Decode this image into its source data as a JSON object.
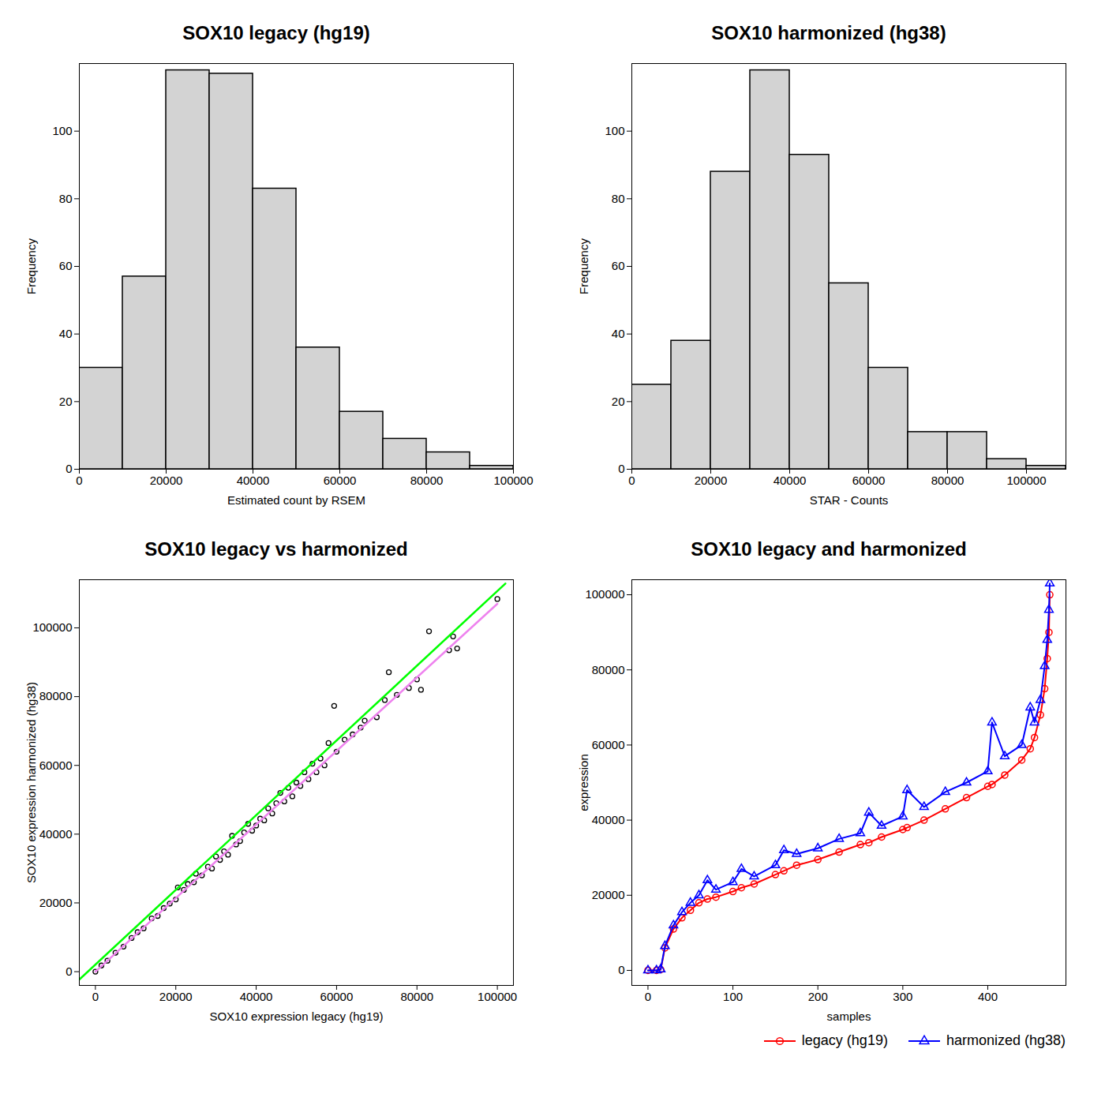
{
  "chart_data": [
    {
      "type": "histogram",
      "title": "SOX10 legacy (hg19)",
      "xlabel": "Estimated count by RSEM",
      "ylabel": "Frequency",
      "bins": [
        0,
        10000,
        20000,
        30000,
        40000,
        50000,
        60000,
        70000,
        80000,
        90000,
        100000
      ],
      "counts": [
        30,
        57,
        118,
        117,
        83,
        36,
        17,
        9,
        5,
        1
      ],
      "color": "#d3d3d3",
      "xlim": [
        0,
        100000
      ],
      "xticks": [
        0,
        20000,
        40000,
        60000,
        80000,
        100000
      ],
      "ylim": [
        0,
        120
      ],
      "yticks": [
        0,
        20,
        40,
        60,
        80,
        100
      ]
    },
    {
      "type": "histogram",
      "title": "SOX10 harmonized (hg38)",
      "xlabel": "STAR - Counts",
      "ylabel": "Frequency",
      "bins": [
        0,
        10000,
        20000,
        30000,
        40000,
        50000,
        60000,
        70000,
        80000,
        90000,
        100000,
        110000
      ],
      "counts": [
        25,
        38,
        88,
        118,
        93,
        55,
        30,
        11,
        11,
        3,
        1
      ],
      "color": "#d3d3d3",
      "xlim": [
        0,
        110000
      ],
      "xticks": [
        0,
        20000,
        40000,
        60000,
        80000,
        100000
      ],
      "ylim": [
        0,
        120
      ],
      "yticks": [
        0,
        20,
        40,
        60,
        80,
        100
      ]
    },
    {
      "type": "scatter",
      "title": "SOX10 legacy vs harmonized",
      "xlabel": "SOX10 expression legacy (hg19)",
      "ylabel": "SOX10 expression harmonized (hg38)",
      "xlim": [
        -4000,
        104000
      ],
      "xticks": [
        0,
        20000,
        40000,
        60000,
        80000,
        100000
      ],
      "ylim": [
        -4000,
        114000
      ],
      "yticks": [
        0,
        20000,
        40000,
        60000,
        80000,
        100000
      ],
      "series": [
        {
          "type": "scatter",
          "color": "#000000",
          "marker": "circle",
          "x": [
            0,
            1500,
            3000,
            5000,
            7000,
            9000,
            10500,
            12000,
            14000,
            15500,
            17000,
            18500,
            20000,
            20500,
            22000,
            23000,
            24500,
            25000,
            26500,
            28000,
            29000,
            30000,
            31000,
            32000,
            33000,
            34000,
            35000,
            36000,
            37000,
            38000,
            39000,
            40000,
            41000,
            42000,
            43000,
            44000,
            45000,
            46000,
            47000,
            48000,
            49000,
            50000,
            51000,
            52000,
            53000,
            54000,
            55000,
            56000,
            57000,
            58000,
            59400,
            60000,
            62000,
            64000,
            66000,
            67000,
            70000,
            72000,
            73000,
            75000,
            78000,
            80000,
            81000,
            83000,
            88000,
            89000,
            90000,
            100000
          ],
          "values": [
            0,
            1800,
            3200,
            5500,
            7300,
            9800,
            11500,
            12600,
            15500,
            16200,
            18500,
            19800,
            21000,
            24500,
            23800,
            25500,
            26000,
            28500,
            28000,
            30500,
            30000,
            33500,
            32500,
            35000,
            34000,
            39500,
            37000,
            38000,
            40500,
            43000,
            41000,
            42500,
            44500,
            44000,
            47500,
            46000,
            49000,
            52000,
            49500,
            53500,
            51000,
            55000,
            54000,
            58000,
            56000,
            60500,
            58000,
            62000,
            60000,
            66500,
            77300,
            64000,
            67500,
            69000,
            71000,
            73000,
            74000,
            79000,
            87100,
            80500,
            82500,
            85000,
            82000,
            99000,
            93500,
            97500,
            94000,
            108400
          ]
        },
        {
          "type": "line",
          "color": "#00ff00",
          "line_style": "solid",
          "x": [
            -4000,
            102000
          ],
          "values": [
            -2300,
            112900
          ]
        },
        {
          "type": "line",
          "color": "#ee82ee",
          "line_style": "solid",
          "x": [
            0,
            100000
          ],
          "values": [
            0,
            107000
          ]
        }
      ]
    },
    {
      "type": "line",
      "title": "SOX10 legacy and harmonized",
      "xlabel": "samples",
      "ylabel": "expression",
      "legend": "bottomright",
      "xlim": [
        -19,
        492
      ],
      "xticks": [
        0,
        100,
        200,
        300,
        400
      ],
      "ylim": [
        -4000,
        104000
      ],
      "yticks": [
        0,
        20000,
        40000,
        60000,
        80000,
        100000
      ],
      "x": [
        0,
        10,
        15,
        20,
        30,
        40,
        50,
        60,
        70,
        80,
        100,
        110,
        125,
        150,
        160,
        175,
        200,
        225,
        250,
        260,
        275,
        300,
        305,
        325,
        350,
        375,
        400,
        405,
        420,
        440,
        450,
        455,
        462,
        467,
        470,
        472,
        473
      ],
      "series": [
        {
          "name": "legacy (hg19)",
          "color": "#ff0000",
          "marker": "circle",
          "values": [
            0,
            0,
            200,
            6000,
            11000,
            14000,
            16000,
            18000,
            19000,
            19500,
            21000,
            22000,
            23000,
            25500,
            26500,
            28000,
            29500,
            31500,
            33500,
            34000,
            35500,
            37500,
            38000,
            40000,
            43000,
            46000,
            49000,
            49500,
            52000,
            56000,
            59000,
            62000,
            68000,
            75000,
            83000,
            90000,
            100000
          ]
        },
        {
          "name": "harmonized (hg38)",
          "color": "#0000ff",
          "marker": "triangle",
          "values": [
            0,
            0,
            300,
            6500,
            12000,
            15500,
            18000,
            20000,
            24000,
            21500,
            23500,
            27000,
            25000,
            28000,
            32000,
            31000,
            32500,
            35000,
            36500,
            42000,
            38500,
            41000,
            48000,
            43500,
            47500,
            50000,
            53000,
            66000,
            57000,
            60000,
            70000,
            66000,
            72000,
            81000,
            88000,
            96000,
            103000
          ]
        }
      ]
    }
  ]
}
